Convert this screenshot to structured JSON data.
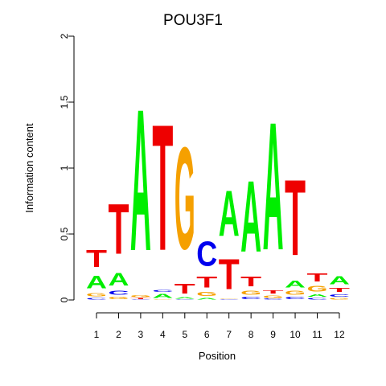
{
  "chart_data": {
    "type": "sequence-logo",
    "title": "POU3F1",
    "xlabel": "Position",
    "ylabel": "Information content",
    "ylim": [
      0,
      2
    ],
    "y_ticks": [
      "0",
      "0.5",
      "1",
      "1.5",
      "2"
    ],
    "positions": [
      "1",
      "2",
      "3",
      "4",
      "5",
      "6",
      "7",
      "8",
      "9",
      "10",
      "11",
      "12"
    ],
    "colors": {
      "A": "#00ee00",
      "C": "#0000ee",
      "G": "#f5a000",
      "T": "#ee0000"
    },
    "stacks": [
      [
        [
          "C",
          0.02
        ],
        [
          "G",
          0.04
        ],
        [
          "A",
          0.15
        ],
        [
          "T",
          0.21
        ]
      ],
      [
        [
          "G",
          0.03
        ],
        [
          "C",
          0.05
        ],
        [
          "A",
          0.15
        ],
        [
          "T",
          0.61
        ]
      ],
      [
        [
          "C",
          0.005
        ],
        [
          "T",
          0.01
        ],
        [
          "G",
          0.025
        ],
        [
          "A",
          1.72
        ]
      ],
      [
        [
          "G",
          0.005
        ],
        [
          "A",
          0.05
        ],
        [
          "C",
          0.025
        ],
        [
          "T",
          1.53
        ]
      ],
      [
        [
          "C",
          0.005
        ],
        [
          "A",
          0.02
        ],
        [
          "T",
          0.12
        ],
        [
          "G",
          1.24
        ]
      ],
      [
        [
          "A",
          0.02
        ],
        [
          "G",
          0.05
        ],
        [
          "T",
          0.13
        ],
        [
          "C",
          0.3
        ]
      ],
      [
        [
          "C",
          0.005
        ],
        [
          "G",
          0.005
        ],
        [
          "T",
          0.37
        ],
        [
          "A",
          0.55
        ]
      ],
      [
        [
          "C",
          0.03
        ],
        [
          "G",
          0.05
        ],
        [
          "T",
          0.12
        ],
        [
          "A",
          0.86
        ]
      ],
      [
        [
          "C",
          0.01
        ],
        [
          "G",
          0.03
        ],
        [
          "T",
          0.04
        ],
        [
          "A",
          1.55
        ]
      ],
      [
        [
          "C",
          0.03
        ],
        [
          "G",
          0.05
        ],
        [
          "A",
          0.08
        ],
        [
          "T",
          0.92
        ]
      ],
      [
        [
          "C",
          0.02
        ],
        [
          "A",
          0.03
        ],
        [
          "G",
          0.07
        ],
        [
          "T",
          0.1
        ]
      ],
      [
        [
          "G",
          0.02
        ],
        [
          "C",
          0.03
        ],
        [
          "T",
          0.05
        ],
        [
          "A",
          0.1
        ]
      ]
    ]
  }
}
